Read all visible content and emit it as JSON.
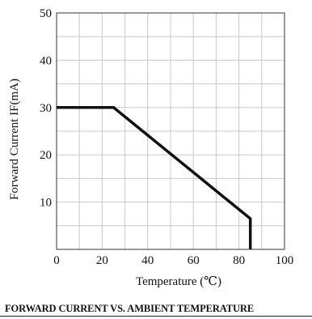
{
  "chart_data": {
    "type": "line",
    "title": "FORWARD CURRENT VS. AMBIENT TEMPERATURE",
    "xlabel": "Temperature (℃)",
    "ylabel": "Forward Current IF(mA)",
    "xlim": [
      0,
      100
    ],
    "ylim": [
      0,
      50
    ],
    "x_ticks": [
      "0",
      "20",
      "40",
      "60",
      "80",
      "100"
    ],
    "y_ticks": [
      "10",
      "20",
      "30",
      "40",
      "50"
    ],
    "grid": true,
    "series": [
      {
        "x": [
          0,
          25,
          85,
          85
        ],
        "y": [
          30,
          30,
          6.5,
          0
        ]
      }
    ],
    "line_color": "#111111",
    "grid_color": "#c8c8c8"
  }
}
